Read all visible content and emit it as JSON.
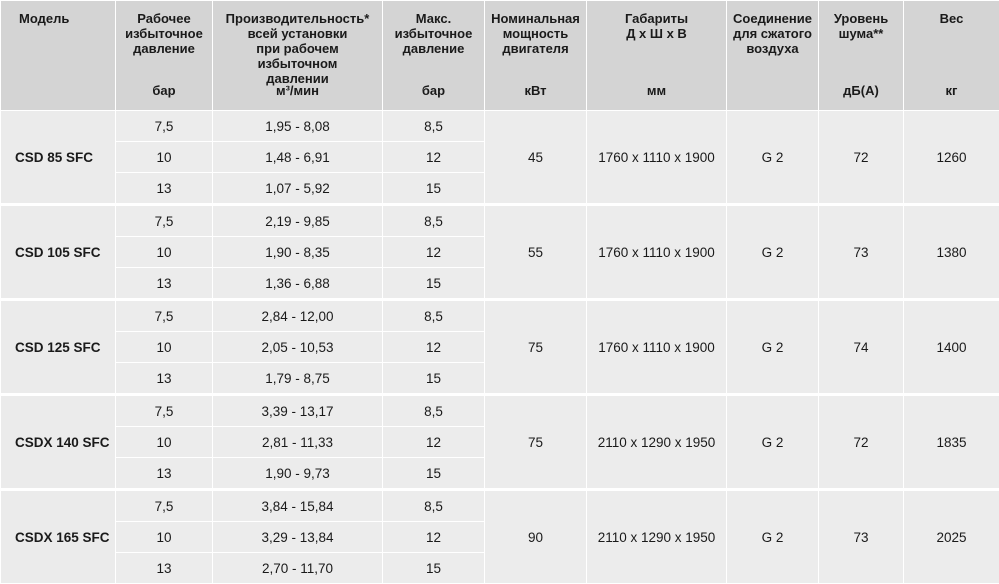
{
  "headers": {
    "model": "Модель",
    "work_pressure": [
      "Рабочее",
      "избыточное",
      "давление"
    ],
    "work_pressure_unit": "бар",
    "capacity": [
      "Производительность*",
      "всей установки",
      "при рабочем избыточном",
      "давлении"
    ],
    "capacity_unit": "м³/мин",
    "max_pressure": [
      "Макс.",
      "избыточное",
      "давление"
    ],
    "max_pressure_unit": "бар",
    "power": [
      "Номинальная",
      "мощность",
      "двигателя"
    ],
    "power_unit": "кВт",
    "dimensions": [
      "Габариты",
      "Д х Ш х В"
    ],
    "dimensions_unit": "мм",
    "connection": [
      "Соединение",
      "для сжатого",
      "воздуха"
    ],
    "connection_unit": "",
    "noise": [
      "Уровень",
      "шума**"
    ],
    "noise_unit": "дБ(А)",
    "weight": [
      "Вес"
    ],
    "weight_unit": "кг"
  },
  "rows": [
    {
      "model": "CSD 85 SFC",
      "variants": [
        {
          "pressure": "7,5",
          "capacity": "1,95 - 8,08",
          "max_pressure": "8,5"
        },
        {
          "pressure": "10",
          "capacity": "1,48 - 6,91",
          "max_pressure": "12"
        },
        {
          "pressure": "13",
          "capacity": "1,07 - 5,92",
          "max_pressure": "15"
        }
      ],
      "power": "45",
      "dimensions": "1760 x 1110 x 1900",
      "connection": "G 2",
      "noise": "72",
      "weight": "1260"
    },
    {
      "model": "CSD 105 SFC",
      "variants": [
        {
          "pressure": "7,5",
          "capacity": "2,19 - 9,85",
          "max_pressure": "8,5"
        },
        {
          "pressure": "10",
          "capacity": "1,90 - 8,35",
          "max_pressure": "12"
        },
        {
          "pressure": "13",
          "capacity": "1,36 - 6,88",
          "max_pressure": "15"
        }
      ],
      "power": "55",
      "dimensions": "1760 x 1110 x 1900",
      "connection": "G 2",
      "noise": "73",
      "weight": "1380"
    },
    {
      "model": "CSD 125 SFC",
      "variants": [
        {
          "pressure": "7,5",
          "capacity": "2,84 - 12,00",
          "max_pressure": "8,5"
        },
        {
          "pressure": "10",
          "capacity": "2,05 - 10,53",
          "max_pressure": "12"
        },
        {
          "pressure": "13",
          "capacity": "1,79 - 8,75",
          "max_pressure": "15"
        }
      ],
      "power": "75",
      "dimensions": "1760 x 1110 x 1900",
      "connection": "G 2",
      "noise": "74",
      "weight": "1400"
    },
    {
      "model": "CSDX 140 SFC",
      "variants": [
        {
          "pressure": "7,5",
          "capacity": "3,39 - 13,17",
          "max_pressure": "8,5"
        },
        {
          "pressure": "10",
          "capacity": "2,81 - 11,33",
          "max_pressure": "12"
        },
        {
          "pressure": "13",
          "capacity": "1,90 - 9,73",
          "max_pressure": "15"
        }
      ],
      "power": "75",
      "dimensions": "2110 x 1290 x 1950",
      "connection": "G 2",
      "noise": "72",
      "weight": "1835"
    },
    {
      "model": "CSDX 165 SFC",
      "variants": [
        {
          "pressure": "7,5",
          "capacity": "3,84 - 15,84",
          "max_pressure": "8,5"
        },
        {
          "pressure": "10",
          "capacity": "3,29 - 13,84",
          "max_pressure": "12"
        },
        {
          "pressure": "13",
          "capacity": "2,70 - 11,70",
          "max_pressure": "15"
        }
      ],
      "power": "90",
      "dimensions": "2110 x 1290 x 1950",
      "connection": "G 2",
      "noise": "73",
      "weight": "2025"
    }
  ]
}
